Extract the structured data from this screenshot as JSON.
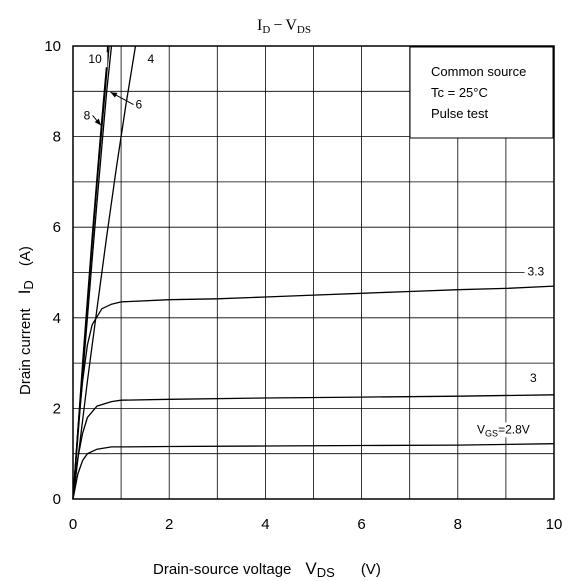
{
  "chart_data": {
    "type": "line",
    "title": "I_D − V_DS",
    "title_main": "I",
    "title_main_sub": "D",
    "title_dash": "−",
    "title_second": "V",
    "title_second_sub": "DS",
    "xlabel": "Drain-source voltage",
    "xlabel_sym": "V",
    "xlabel_sub": "DS",
    "xlabel_unit": "(V)",
    "ylabel": "Drain current",
    "ylabel_sym": "I",
    "ylabel_sub": "D",
    "ylabel_unit": "(A)",
    "xlim": [
      0,
      10
    ],
    "ylim": [
      0,
      10
    ],
    "xticks": [
      "0",
      "2",
      "4",
      "6",
      "8",
      "10"
    ],
    "yticks": [
      "0",
      "2",
      "4",
      "6",
      "8",
      "10"
    ],
    "grid": true,
    "legend_box": {
      "line1": "Common source",
      "line2": "Tc = 25°C",
      "line3": "Pulse test",
      "placement": "top-right"
    },
    "series": [
      {
        "name": "10",
        "points": [
          [
            0,
            0
          ],
          [
            0.1,
            1.5
          ],
          [
            0.2,
            3.0
          ],
          [
            0.3,
            4.4
          ],
          [
            0.4,
            5.8
          ],
          [
            0.5,
            7.1
          ],
          [
            0.6,
            8.4
          ],
          [
            0.7,
            9.6
          ],
          [
            0.72,
            10
          ]
        ],
        "label": "10",
        "label_at": [
          0.32,
          9.62
        ],
        "arrow": false
      },
      {
        "name": "8",
        "points": [
          [
            0,
            0
          ],
          [
            0.1,
            1.45
          ],
          [
            0.2,
            2.9
          ],
          [
            0.3,
            4.3
          ],
          [
            0.4,
            5.65
          ],
          [
            0.5,
            6.95
          ],
          [
            0.6,
            8.2
          ],
          [
            0.7,
            9.4
          ],
          [
            0.75,
            10
          ]
        ],
        "label": "8",
        "label_at": [
          0.22,
          8.38
        ],
        "arrow": true,
        "arrow_to": [
          0.58,
          8.25
        ]
      },
      {
        "name": "6",
        "points": [
          [
            0,
            0
          ],
          [
            0.1,
            1.35
          ],
          [
            0.2,
            2.7
          ],
          [
            0.3,
            4.0
          ],
          [
            0.4,
            5.3
          ],
          [
            0.5,
            6.55
          ],
          [
            0.6,
            7.8
          ],
          [
            0.7,
            9.0
          ],
          [
            0.8,
            10
          ]
        ],
        "label": "6",
        "label_at": [
          1.3,
          8.62
        ],
        "arrow": true,
        "arrow_to": [
          0.78,
          8.98
        ]
      },
      {
        "name": "4",
        "points": [
          [
            0,
            0
          ],
          [
            0.15,
            1.3
          ],
          [
            0.3,
            2.6
          ],
          [
            0.5,
            4.2
          ],
          [
            0.7,
            5.8
          ],
          [
            0.9,
            7.3
          ],
          [
            1.1,
            8.7
          ],
          [
            1.3,
            10
          ]
        ],
        "label": "4",
        "label_at": [
          1.55,
          9.62
        ],
        "arrow": false
      },
      {
        "name": "3.3",
        "points": [
          [
            0,
            0
          ],
          [
            0.1,
            1.5
          ],
          [
            0.2,
            2.6
          ],
          [
            0.3,
            3.4
          ],
          [
            0.4,
            3.85
          ],
          [
            0.6,
            4.2
          ],
          [
            0.8,
            4.3
          ],
          [
            1,
            4.35
          ],
          [
            2,
            4.4
          ],
          [
            3,
            4.42
          ],
          [
            4,
            4.46
          ],
          [
            5,
            4.5
          ],
          [
            6,
            4.54
          ],
          [
            7,
            4.58
          ],
          [
            8,
            4.62
          ],
          [
            9,
            4.65
          ],
          [
            10,
            4.7
          ]
        ],
        "label": "3.3",
        "label_at": [
          9.45,
          4.93
        ],
        "arrow": false
      },
      {
        "name": "3",
        "points": [
          [
            0,
            0
          ],
          [
            0.1,
            0.9
          ],
          [
            0.2,
            1.45
          ],
          [
            0.3,
            1.8
          ],
          [
            0.5,
            2.05
          ],
          [
            0.8,
            2.15
          ],
          [
            1,
            2.18
          ],
          [
            2,
            2.2
          ],
          [
            4,
            2.23
          ],
          [
            6,
            2.25
          ],
          [
            8,
            2.27
          ],
          [
            10,
            2.3
          ]
        ],
        "label": "3",
        "label_at": [
          9.5,
          2.58
        ],
        "arrow": false
      },
      {
        "name": "2.8",
        "points": [
          [
            0,
            0
          ],
          [
            0.1,
            0.55
          ],
          [
            0.2,
            0.85
          ],
          [
            0.3,
            1.0
          ],
          [
            0.5,
            1.1
          ],
          [
            0.8,
            1.15
          ],
          [
            1,
            1.15
          ],
          [
            2,
            1.16
          ],
          [
            4,
            1.17
          ],
          [
            6,
            1.18
          ],
          [
            8,
            1.19
          ],
          [
            10,
            1.22
          ]
        ],
        "label": "V",
        "label_sub": "GS",
        "label_rest": "=2.8V",
        "label_at": [
          8.4,
          1.45
        ],
        "arrow": false
      }
    ]
  }
}
